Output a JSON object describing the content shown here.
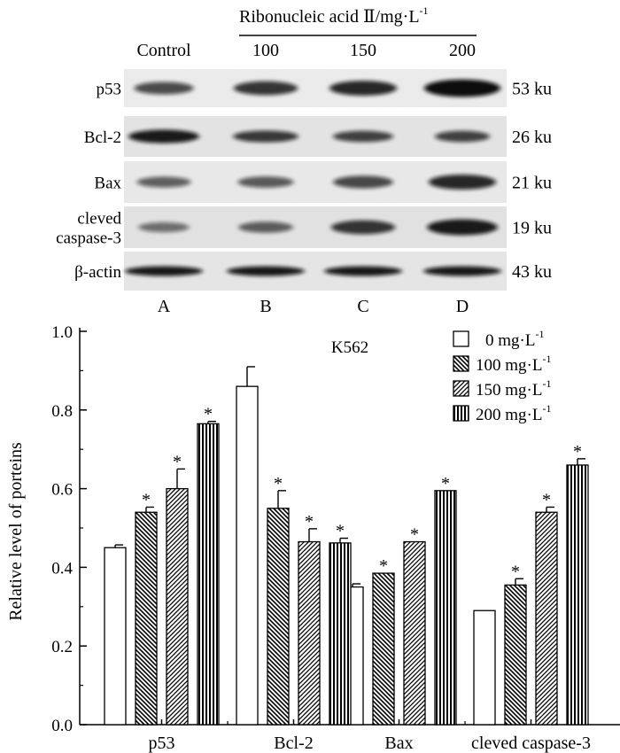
{
  "blot": {
    "treatment_title": "Ribonucleic acid Ⅱ/mg·L",
    "treatment_title_exp": "-1",
    "column_headers": [
      "Control",
      "100",
      "150",
      "200"
    ],
    "lane_letters": [
      "A",
      "B",
      "C",
      "D"
    ],
    "rows": [
      {
        "protein": "p53",
        "size": "53 ku",
        "intensity": [
          0.45,
          0.54,
          0.6,
          0.77
        ]
      },
      {
        "protein": "Bcl-2",
        "size": "26 ku",
        "intensity": [
          0.86,
          0.55,
          0.46,
          0.46
        ]
      },
      {
        "protein": "Bax",
        "size": "21 ku",
        "intensity": [
          0.35,
          0.38,
          0.46,
          0.6
        ]
      },
      {
        "protein": "cleved\ncaspase-3",
        "size": "19 ku",
        "intensity": [
          0.29,
          0.36,
          0.54,
          0.66
        ]
      },
      {
        "protein": "β-actin",
        "size": "43 ku",
        "intensity": [
          0.8,
          0.8,
          0.8,
          0.8
        ]
      }
    ]
  },
  "chart_data": {
    "type": "bar",
    "title": "K562",
    "ylabel": "Relative level of porteins",
    "xlabel": "",
    "ylim": [
      0.0,
      1.0
    ],
    "yticks": [
      "0.0",
      "0.2",
      "0.4",
      "0.6",
      "0.8",
      "1.0"
    ],
    "categories": [
      "p53",
      "Bcl-2",
      "Bax",
      "cleved caspase-3"
    ],
    "significance_marker": "*",
    "series": [
      {
        "name": "0 mg·L",
        "exp": "-1",
        "pattern": "empty",
        "values": [
          0.45,
          0.86,
          0.35,
          0.29
        ],
        "errors": [
          0.007,
          0.05,
          0.008,
          0.0
        ],
        "significant": [
          false,
          false,
          false,
          false
        ]
      },
      {
        "name": "100 mg·L",
        "exp": "-1",
        "pattern": "backslash",
        "values": [
          0.54,
          0.55,
          0.385,
          0.355
        ],
        "errors": [
          0.013,
          0.045,
          0.0,
          0.016
        ],
        "significant": [
          true,
          true,
          true,
          true
        ]
      },
      {
        "name": "150 mg·L",
        "exp": "-1",
        "pattern": "slash",
        "values": [
          0.6,
          0.465,
          0.465,
          0.54
        ],
        "errors": [
          0.05,
          0.033,
          0.0,
          0.013
        ],
        "significant": [
          true,
          true,
          true,
          true
        ]
      },
      {
        "name": "200 mg·L",
        "exp": "-1",
        "pattern": "vertical",
        "values": [
          0.765,
          0.462,
          0.595,
          0.66
        ],
        "errors": [
          0.006,
          0.012,
          0.0,
          0.016
        ],
        "significant": [
          true,
          true,
          true,
          true
        ]
      }
    ]
  }
}
